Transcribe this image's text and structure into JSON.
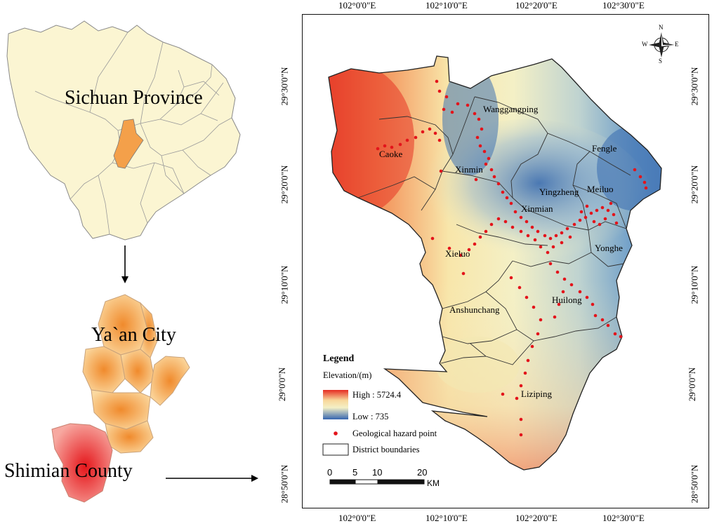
{
  "overview": {
    "province_label": "Sichuan Province",
    "city_label": "Ya`an City",
    "county_label": "Shimian County"
  },
  "map": {
    "top_ticks": [
      "102°0'0\"E",
      "102°10'0\"E",
      "102°20'0\"E",
      "102°30'0\"E"
    ],
    "bottom_ticks": [
      "102°0'0\"E",
      "102°10'0\"E",
      "102°20'0\"E",
      "102°30'0\"E"
    ],
    "left_ticks": [
      "29°30'0\"N",
      "29°20'0\"N",
      "29°10'0\"N",
      "29°0'0\"N",
      "28°50'0\"N"
    ],
    "right_ticks": [
      "29°30'0\"N",
      "29°20'0\"N",
      "29°10'0\"N",
      "29°0'0\"N",
      "28°50'0\"N"
    ],
    "compass": {
      "n": "N",
      "s": "S",
      "e": "E",
      "w": "W"
    },
    "towns": [
      "Wanggangping",
      "Caoke",
      "Xinmin",
      "Fengle",
      "Yingzheng",
      "Meiluo",
      "Xinmian",
      "Xieluo",
      "Yonghe",
      "Anshunchang",
      "Huilong",
      "Liziping"
    ],
    "legend": {
      "title": "Legend",
      "elevation_label": "Elevation/(m)",
      "high_label": "High : 5724.4",
      "low_label": "Low : 735",
      "hazard_label": "Geological hazard point",
      "boundary_label": "District boundaries"
    },
    "scale": {
      "labels": [
        "0",
        "5",
        "10",
        "20"
      ],
      "unit": "KM"
    },
    "colors": {
      "high": "#e8352a",
      "mid": "#f6f0b8",
      "low": "#3b6fb0",
      "hazard": "#e3141b",
      "province_fill": "#fbf5d2",
      "city_fill": "#f6a848"
    }
  }
}
